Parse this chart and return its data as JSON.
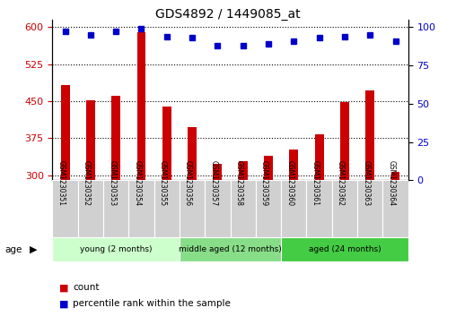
{
  "title": "GDS4892 / 1449085_at",
  "samples": [
    "GSM1230351",
    "GSM1230352",
    "GSM1230353",
    "GSM1230354",
    "GSM1230355",
    "GSM1230356",
    "GSM1230357",
    "GSM1230358",
    "GSM1230359",
    "GSM1230360",
    "GSM1230361",
    "GSM1230362",
    "GSM1230363",
    "GSM1230364"
  ],
  "counts": [
    482,
    452,
    460,
    590,
    440,
    398,
    323,
    328,
    340,
    352,
    383,
    449,
    472,
    308
  ],
  "percentile_ranks": [
    97,
    95,
    97,
    99,
    94,
    93,
    88,
    88,
    89,
    91,
    93,
    94,
    95,
    91
  ],
  "ylim_left": [
    290,
    615
  ],
  "ylim_right": [
    0,
    105
  ],
  "yticks_left": [
    300,
    375,
    450,
    525,
    600
  ],
  "yticks_right": [
    0,
    25,
    50,
    75,
    100
  ],
  "bar_color": "#cc0000",
  "dot_color": "#0000cc",
  "groups": [
    {
      "label": "young (2 months)",
      "start": 0,
      "end": 5,
      "color": "#ccffcc"
    },
    {
      "label": "middle aged (12 months)",
      "start": 5,
      "end": 9,
      "color": "#88dd88"
    },
    {
      "label": "aged (24 months)",
      "start": 9,
      "end": 14,
      "color": "#44cc44"
    }
  ],
  "legend_count_label": "count",
  "legend_percentile_label": "percentile rank within the sample",
  "bar_color_left": "#cc0000",
  "ylabel_right_color": "#0000cc",
  "cell_bg": "#d0d0d0",
  "cell_edge": "#ffffff"
}
